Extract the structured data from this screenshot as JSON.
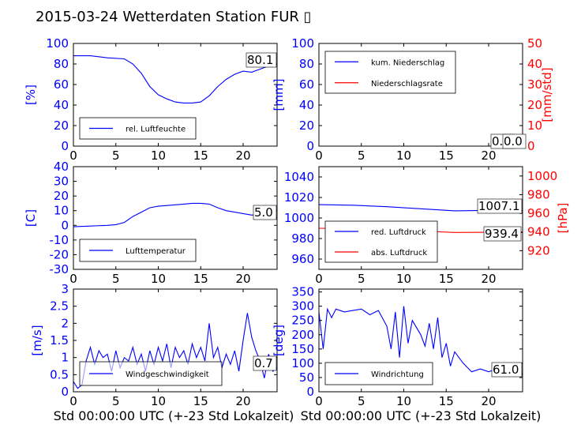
{
  "figure": {
    "title": "2015-03-24 Wetterdaten Station FUR",
    "title_glyph": "▯",
    "xlabel_left": "Std 00:00:00 UTC (+-23 Std Lokalzeit)",
    "xlabel_right": "Std 00:00:00 UTC (+-23 Std Lokalzeit)"
  },
  "colors": {
    "blue": "#0000ff",
    "red": "#ff0000",
    "black": "#000000"
  },
  "chart_data": [
    {
      "id": "humidity",
      "type": "line",
      "xlim": [
        0,
        24
      ],
      "ylim": [
        0,
        100
      ],
      "xticks": [
        0,
        5,
        10,
        15,
        20
      ],
      "yticks": [
        0,
        20,
        40,
        60,
        80,
        100
      ],
      "ylabel": "[%]",
      "legend_position": "lower-left",
      "annotation": "80.1",
      "series": [
        {
          "name": "rel. Luftfeuchte",
          "color": "#0000ff",
          "x": [
            0,
            2,
            4,
            6,
            7,
            8,
            9,
            10,
            11,
            12,
            13,
            14,
            15,
            16,
            17,
            18,
            19,
            20,
            21,
            22,
            23,
            24
          ],
          "y": [
            88,
            88,
            86,
            85,
            80,
            71,
            58,
            50,
            46,
            43,
            42,
            42,
            43,
            49,
            58,
            65,
            70,
            73,
            72,
            75,
            78,
            80
          ]
        }
      ]
    },
    {
      "id": "precip",
      "type": "line",
      "xlim": [
        0,
        24
      ],
      "ylim": [
        0,
        100
      ],
      "ylim_right": [
        0,
        50
      ],
      "xticks": [
        0,
        5,
        10,
        15,
        20
      ],
      "yticks": [
        0,
        20,
        40,
        60,
        80,
        100
      ],
      "yticks_right": [
        0,
        10,
        20,
        30,
        40,
        50
      ],
      "ylabel": "[mm]",
      "ylabel_right": "[mm/std]",
      "legend_position": "upper-left",
      "annotations": [
        "0.0",
        "0.0"
      ],
      "series": [
        {
          "name": "kum. Niederschlag",
          "color": "#0000ff",
          "x": [
            0,
            24
          ],
          "y": [
            0,
            0
          ]
        },
        {
          "name": "Niederschlagsrate",
          "color": "#ff0000",
          "x": [
            0,
            24
          ],
          "y": [
            0,
            0
          ]
        }
      ]
    },
    {
      "id": "temperature",
      "type": "line",
      "xlim": [
        0,
        24
      ],
      "ylim": [
        -30,
        40
      ],
      "xticks": [
        0,
        5,
        10,
        15,
        20
      ],
      "yticks": [
        -30,
        -20,
        -10,
        0,
        10,
        20,
        30,
        40
      ],
      "ylabel": "[C]",
      "legend_position": "lower-left",
      "annotation": "5.0",
      "series": [
        {
          "name": "Lufttemperatur",
          "color": "#0000ff",
          "x": [
            0,
            2,
            4,
            5,
            6,
            7,
            8,
            9,
            10,
            11,
            12,
            13,
            14,
            15,
            16,
            17,
            18,
            19,
            20,
            21,
            22,
            23,
            24
          ],
          "y": [
            -1,
            -0.5,
            0,
            0.5,
            2,
            6,
            9,
            12,
            13,
            13.5,
            14,
            14.5,
            15,
            15,
            14.5,
            12,
            10,
            9,
            8,
            7,
            7.5,
            6,
            5
          ]
        }
      ]
    },
    {
      "id": "pressure",
      "type": "line",
      "xlim": [
        0,
        24
      ],
      "ylim": [
        950,
        1050
      ],
      "ylim_right": [
        900,
        1010
      ],
      "xticks": [
        0,
        5,
        10,
        15,
        20
      ],
      "yticks": [
        960,
        980,
        1000,
        1020,
        1040
      ],
      "yticks_right": [
        920,
        940,
        960,
        980,
        1000
      ],
      "ylabel_right": "[hPa]",
      "legend_position": "lower-left",
      "annotations": [
        "1007.1",
        "939.4"
      ],
      "series": [
        {
          "name": "red. Luftdruck",
          "color": "#0000ff",
          "x": [
            0,
            4,
            8,
            12,
            16,
            20,
            24
          ],
          "y": [
            1013,
            1012.5,
            1011,
            1009,
            1007,
            1007.5,
            1007.1
          ]
        },
        {
          "name": "abs. Luftdruck",
          "color": "#ff0000",
          "x": [
            0,
            4,
            8,
            12,
            16,
            20,
            24
          ],
          "y": [
            944,
            943.5,
            942.5,
            941,
            939.5,
            939.7,
            939.4
          ]
        }
      ]
    },
    {
      "id": "windspeed",
      "type": "line",
      "xlim": [
        0,
        24
      ],
      "ylim": [
        0,
        3
      ],
      "xticks": [
        0,
        5,
        10,
        15,
        20
      ],
      "yticks": [
        0,
        0.5,
        1,
        1.5,
        2,
        2.5,
        3
      ],
      "ylabel": "[m/s]",
      "legend_position": "lower-center",
      "annotation": "0.7",
      "series": [
        {
          "name": "Windgeschwindigkeit",
          "color": "#0000ff",
          "x": [
            0,
            0.5,
            1,
            1.5,
            2,
            2.5,
            3,
            3.5,
            4,
            4.5,
            5,
            5.5,
            6,
            6.5,
            7,
            7.5,
            8,
            8.5,
            9,
            9.5,
            10,
            10.5,
            11,
            11.5,
            12,
            12.5,
            13,
            13.5,
            14,
            14.5,
            15,
            15.5,
            16,
            16.5,
            17,
            17.5,
            18,
            18.5,
            19,
            19.5,
            20,
            20.5,
            21,
            21.5,
            22,
            22.5,
            23,
            23.5,
            24
          ],
          "y": [
            0.3,
            0.1,
            0.2,
            0.9,
            1.3,
            0.8,
            1.2,
            1.0,
            1.1,
            0.6,
            1.2,
            0.7,
            1.0,
            0.9,
            1.3,
            0.8,
            1.1,
            0.6,
            1.2,
            0.8,
            1.3,
            0.9,
            1.4,
            0.7,
            1.3,
            1.0,
            1.2,
            0.8,
            1.4,
            1.0,
            1.3,
            0.9,
            2.0,
            1.0,
            1.3,
            0.7,
            1.1,
            0.8,
            1.2,
            0.6,
            1.5,
            2.3,
            1.6,
            1.2,
            0.9,
            0.4,
            1.1,
            0.6,
            0.7
          ]
        }
      ]
    },
    {
      "id": "winddir",
      "type": "line",
      "xlim": [
        0,
        24
      ],
      "ylim": [
        0,
        360
      ],
      "xticks": [
        0,
        5,
        10,
        15,
        20
      ],
      "yticks": [
        0,
        50,
        100,
        150,
        200,
        250,
        300,
        350
      ],
      "ylabel": "[deg]",
      "legend_position": "lower-left",
      "annotation": "61.0",
      "series": [
        {
          "name": "Windrichtung",
          "color": "#0000ff",
          "x": [
            0,
            0.5,
            1,
            1.5,
            2,
            3,
            4,
            5,
            6,
            7,
            8,
            8.5,
            9,
            9.5,
            10,
            10.5,
            11,
            12,
            12.5,
            13,
            13.5,
            14,
            14.5,
            15,
            15.5,
            16,
            17,
            18,
            19,
            20,
            21,
            22,
            23,
            24
          ],
          "y": [
            280,
            150,
            290,
            260,
            290,
            280,
            285,
            290,
            270,
            285,
            230,
            150,
            280,
            120,
            300,
            170,
            250,
            200,
            160,
            240,
            150,
            260,
            120,
            170,
            90,
            140,
            100,
            70,
            80,
            70,
            80,
            90,
            80,
            61
          ]
        }
      ]
    }
  ]
}
